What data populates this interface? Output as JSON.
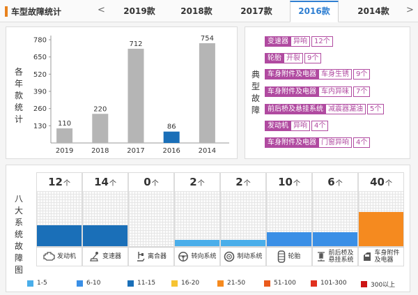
{
  "header": {
    "title": "车型故障统计",
    "prev_arrow": "<",
    "next_arrow": ">",
    "tabs": [
      {
        "label": "2019款",
        "active": false
      },
      {
        "label": "2018款",
        "active": false
      },
      {
        "label": "2017款",
        "active": false
      },
      {
        "label": "2016款",
        "active": true
      },
      {
        "label": "2014款",
        "active": false
      }
    ]
  },
  "chart_panel": {
    "side_label": [
      "各",
      "年",
      "款",
      "统",
      "计"
    ]
  },
  "chart_data": {
    "type": "bar",
    "categories": [
      "2019",
      "2018",
      "2017",
      "2016",
      "2014"
    ],
    "values": [
      110,
      220,
      712,
      86,
      754
    ],
    "highlight_index": 3,
    "yticks": [
      130,
      260,
      390,
      520,
      650,
      780
    ],
    "ylim": [
      0,
      780
    ],
    "bar_color": "#b5b5b5",
    "highlight_color": "#1a6fb8",
    "title": "",
    "xlabel": "",
    "ylabel": ""
  },
  "faults_panel": {
    "side_label": [
      "典",
      "型",
      "故",
      "障"
    ],
    "items": [
      {
        "part": "变速器",
        "fault": "异响",
        "count": "12个"
      },
      {
        "part": "轮胎",
        "fault": "开裂",
        "count": "9个"
      },
      {
        "part": "车身附件及电器",
        "fault": "车身生锈",
        "count": "9个"
      },
      {
        "part": "车身附件及电器",
        "fault": "车内异味",
        "count": "7个"
      },
      {
        "part": "前后桥及悬挂系统",
        "fault": "减震器漏油",
        "count": "5个"
      },
      {
        "part": "发动机",
        "fault": "异响",
        "count": "4个"
      },
      {
        "part": "车身附件及电器",
        "fault": "门窗异响",
        "count": "4个"
      }
    ],
    "tag_color": "#b04aa0"
  },
  "systems_panel": {
    "side_label": [
      "八",
      "大",
      "系",
      "统",
      "故",
      "障",
      "图"
    ],
    "unit": "个",
    "systems": [
      {
        "count": "12",
        "label": "发动机",
        "icon": "engine-icon",
        "fill": 0.38,
        "color": "#1a6fb8"
      },
      {
        "count": "14",
        "label": "变速器",
        "icon": "gear-shift-icon",
        "fill": 0.38,
        "color": "#1a6fb8"
      },
      {
        "count": "0",
        "label": "离合器",
        "icon": "clutch-pedal-icon",
        "fill": 0.0,
        "color": "#4aaeea"
      },
      {
        "count": "2",
        "label": "转向系统",
        "icon": "steering-wheel-icon",
        "fill": 0.12,
        "color": "#4aaeea"
      },
      {
        "count": "2",
        "label": "制动系统",
        "icon": "brake-disc-icon",
        "fill": 0.12,
        "color": "#4aaeea"
      },
      {
        "count": "10",
        "label": "轮胎",
        "icon": "tire-icon",
        "fill": 0.25,
        "color": "#3a8fe6"
      },
      {
        "count": "6",
        "label": "前后桥及\n悬挂系统",
        "icon": "suspension-icon",
        "fill": 0.25,
        "color": "#3a8fe6"
      },
      {
        "count": "40",
        "label": "车身附件\n及电器",
        "icon": "car-door-icon",
        "fill": 0.62,
        "color": "#f58a1f"
      }
    ],
    "legend": [
      {
        "label": "1-5",
        "color": "#4aaeea"
      },
      {
        "label": "6-10",
        "color": "#3a8fe6"
      },
      {
        "label": "11-15",
        "color": "#1a6fb8"
      },
      {
        "label": "16-20",
        "color": "#f6c432"
      },
      {
        "label": "21-50",
        "color": "#f58a1f"
      },
      {
        "label": "51-100",
        "color": "#ea5a1c"
      },
      {
        "label": "101-300",
        "color": "#e0301e"
      },
      {
        "label": "300以上",
        "color": "#cc1414"
      }
    ]
  }
}
